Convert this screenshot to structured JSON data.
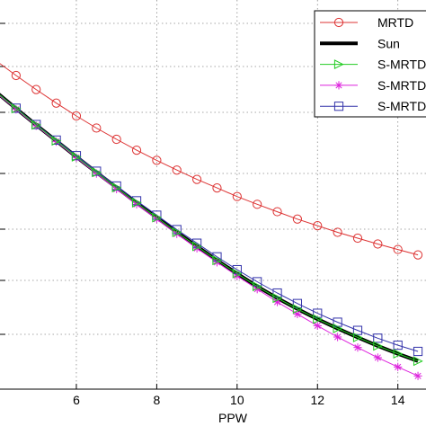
{
  "chart_data": {
    "type": "line",
    "title": "",
    "xlabel": "PPW",
    "ylabel": "",
    "xlim": [
      4.1,
      14.7
    ],
    "ylim": [
      0,
      1
    ],
    "x_ticks": [
      6,
      8,
      10,
      12,
      14
    ],
    "grid": true,
    "legend_position": "top-right",
    "x": [
      4,
      4.5,
      5,
      5.5,
      6,
      6.5,
      7,
      7.5,
      8,
      8.5,
      9,
      9.5,
      10,
      10.5,
      11,
      11.5,
      12,
      12.5,
      13,
      13.5,
      14,
      14.5
    ],
    "series": [
      {
        "name": "MRTD",
        "color": "#dd3333",
        "line_width": 1,
        "marker": "circle",
        "values": [
          0.844,
          0.806,
          0.77,
          0.735,
          0.702,
          0.671,
          0.642,
          0.614,
          0.588,
          0.563,
          0.539,
          0.517,
          0.495,
          0.475,
          0.456,
          0.437,
          0.42,
          0.403,
          0.388,
          0.373,
          0.359,
          0.345
        ]
      },
      {
        "name": "Sun",
        "color": "#000000",
        "line_width": 4,
        "marker": "none",
        "values": [
          0.764,
          0.721,
          0.679,
          0.638,
          0.597,
          0.557,
          0.518,
          0.479,
          0.441,
          0.403,
          0.367,
          0.331,
          0.297,
          0.264,
          0.234,
          0.206,
          0.18,
          0.156,
          0.133,
          0.111,
          0.091,
          0.072
        ]
      },
      {
        "name": "S-MRTD",
        "color": "#22cc22",
        "line_width": 1,
        "marker": "triangle-right",
        "values": [
          0.764,
          0.721,
          0.679,
          0.638,
          0.597,
          0.557,
          0.518,
          0.479,
          0.441,
          0.403,
          0.367,
          0.331,
          0.297,
          0.264,
          0.234,
          0.206,
          0.18,
          0.156,
          0.133,
          0.111,
          0.091,
          0.072
        ]
      },
      {
        "name": "S-MRTD",
        "color": "#dd22dd",
        "line_width": 1,
        "marker": "asterisk",
        "values": [
          0.762,
          0.719,
          0.677,
          0.636,
          0.595,
          0.554,
          0.514,
          0.475,
          0.437,
          0.399,
          0.362,
          0.326,
          0.291,
          0.257,
          0.224,
          0.193,
          0.163,
          0.134,
          0.107,
          0.081,
          0.057,
          0.034
        ]
      },
      {
        "name": "S-MRTD",
        "color": "#3333aa",
        "line_width": 1,
        "marker": "square",
        "values": [
          0.764,
          0.722,
          0.68,
          0.64,
          0.6,
          0.56,
          0.522,
          0.484,
          0.447,
          0.41,
          0.375,
          0.34,
          0.307,
          0.276,
          0.247,
          0.22,
          0.195,
          0.172,
          0.151,
          0.131,
          0.113,
          0.097
        ]
      }
    ]
  }
}
